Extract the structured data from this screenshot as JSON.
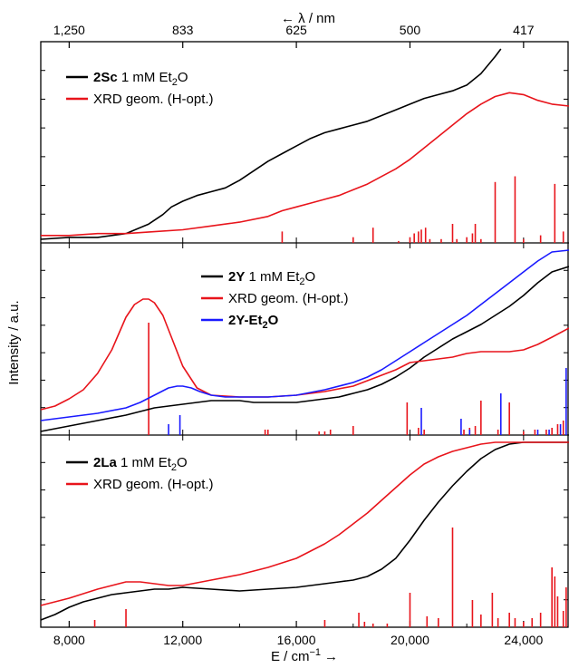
{
  "colors": {
    "sample": "#000000",
    "xrd": "#e8141b",
    "ether": "#1a1aff"
  },
  "axes": {
    "xlabel_main": "E / cm",
    "xlabel_exp": "−1",
    "xlabel_arrow": "→",
    "ylabel": "Intensity / a.u.",
    "top_label": "← λ / nm"
  },
  "chart_data": [
    {
      "type": "line",
      "panel": "top",
      "x_range": [
        7000,
        25600
      ],
      "x_ticks": [
        8000,
        12000,
        16000,
        20000,
        24000
      ],
      "x_tick_labels": [
        "8,000",
        "12,000",
        "16,000",
        "20,000",
        "24,000"
      ],
      "top_axis": {
        "ticks_wavenumber": [
          8000,
          12000,
          16000,
          20000,
          24000
        ],
        "tick_labels": [
          "1,250",
          "833",
          "625",
          "500",
          "417"
        ]
      },
      "ylim": [
        0,
        1
      ],
      "legend": [
        {
          "name_bold": "2Sc",
          "name_rest": " 1 mM Et",
          "sub": "2",
          "name_tail": "O",
          "color": "sample"
        },
        {
          "name_bold": "",
          "name_rest": "XRD geom. (H-opt.)",
          "sub": "",
          "name_tail": "",
          "color": "xrd"
        }
      ],
      "series": [
        {
          "name": "2Sc 1 mM Et2O",
          "color": "sample",
          "x": [
            7000,
            8000,
            9000,
            10000,
            10800,
            11300,
            11600,
            12000,
            12500,
            13000,
            13500,
            14000,
            14500,
            15000,
            15500,
            16000,
            16500,
            17000,
            17500,
            18000,
            18500,
            19000,
            19500,
            20000,
            20500,
            21000,
            21500,
            22000,
            22500,
            23000,
            23200
          ],
          "y": [
            0.0,
            0.01,
            0.01,
            0.03,
            0.08,
            0.13,
            0.17,
            0.2,
            0.23,
            0.25,
            0.27,
            0.31,
            0.36,
            0.41,
            0.45,
            0.49,
            0.53,
            0.56,
            0.58,
            0.6,
            0.62,
            0.65,
            0.68,
            0.71,
            0.74,
            0.76,
            0.78,
            0.81,
            0.87,
            0.96,
            1.0
          ]
        },
        {
          "name": "XRD geom. (H-opt.)",
          "color": "xrd",
          "x": [
            7000,
            8000,
            9000,
            10000,
            11000,
            12000,
            13000,
            14000,
            15000,
            15500,
            16000,
            16500,
            17000,
            17500,
            18000,
            18500,
            19000,
            19500,
            20000,
            20500,
            21000,
            21500,
            22000,
            22500,
            23000,
            23500,
            24000,
            24500,
            25000,
            25600
          ],
          "y": [
            0.02,
            0.02,
            0.03,
            0.03,
            0.04,
            0.05,
            0.07,
            0.09,
            0.12,
            0.15,
            0.17,
            0.19,
            0.21,
            0.23,
            0.26,
            0.29,
            0.33,
            0.37,
            0.42,
            0.48,
            0.54,
            0.6,
            0.66,
            0.71,
            0.75,
            0.77,
            0.76,
            0.73,
            0.71,
            0.7
          ]
        }
      ],
      "sticks": {
        "color": "xrd",
        "x": [
          15500,
          18000,
          18700,
          19600,
          20000,
          20150,
          20300,
          20400,
          20550,
          20700,
          21100,
          21500,
          21650,
          22000,
          22200,
          22300,
          22500,
          23000,
          23700,
          24000,
          24600,
          25100,
          25400
        ],
        "h": [
          0.06,
          0.03,
          0.08,
          0.01,
          0.03,
          0.05,
          0.06,
          0.07,
          0.08,
          0.02,
          0.02,
          0.1,
          0.02,
          0.03,
          0.05,
          0.1,
          0.02,
          0.32,
          0.35,
          0.02,
          0.04,
          0.31,
          0.06
        ]
      }
    },
    {
      "type": "line",
      "panel": "middle",
      "x_range": [
        7000,
        25600
      ],
      "ylim": [
        0,
        1
      ],
      "legend": [
        {
          "name_bold": "2Y",
          "name_rest": " 1 mM Et",
          "sub": "2",
          "name_tail": "O",
          "color": "sample"
        },
        {
          "name_bold": "",
          "name_rest": "XRD geom. (H-opt.)",
          "sub": "",
          "name_tail": "",
          "color": "xrd"
        },
        {
          "name_bold": "2Y-Et",
          "name_rest": "",
          "sub": "2",
          "name_tail": "O",
          "tail_bold": true,
          "color": "ether"
        }
      ],
      "series": [
        {
          "name": "2Y 1 mM Et2O",
          "color": "sample",
          "x": [
            7000,
            8000,
            9000,
            10000,
            11000,
            12000,
            12500,
            13000,
            13500,
            14000,
            14500,
            15000,
            15500,
            16000,
            16500,
            17000,
            17500,
            18000,
            18500,
            19000,
            19500,
            20000,
            20500,
            21000,
            21500,
            22000,
            22500,
            23000,
            23500,
            24000,
            24500,
            25000,
            25600
          ],
          "y": [
            0.0,
            0.03,
            0.06,
            0.09,
            0.13,
            0.15,
            0.16,
            0.17,
            0.17,
            0.17,
            0.16,
            0.16,
            0.16,
            0.16,
            0.17,
            0.18,
            0.19,
            0.21,
            0.23,
            0.26,
            0.3,
            0.35,
            0.41,
            0.46,
            0.51,
            0.55,
            0.59,
            0.64,
            0.69,
            0.75,
            0.82,
            0.88,
            0.91
          ]
        },
        {
          "name": "XRD geom. (H-opt.)",
          "color": "xrd",
          "x": [
            7000,
            7500,
            8000,
            8500,
            9000,
            9500,
            10000,
            10300,
            10600,
            10800,
            11000,
            11300,
            11600,
            12000,
            12500,
            13000,
            14000,
            15000,
            16000,
            17000,
            18000,
            18500,
            19000,
            19500,
            20000,
            20500,
            21000,
            21500,
            22000,
            22500,
            23000,
            23500,
            24000,
            24500,
            25000,
            25600
          ],
          "y": [
            0.12,
            0.14,
            0.18,
            0.23,
            0.32,
            0.45,
            0.63,
            0.7,
            0.73,
            0.73,
            0.71,
            0.64,
            0.52,
            0.36,
            0.24,
            0.2,
            0.19,
            0.19,
            0.2,
            0.22,
            0.25,
            0.28,
            0.31,
            0.34,
            0.38,
            0.39,
            0.4,
            0.41,
            0.43,
            0.44,
            0.44,
            0.44,
            0.45,
            0.48,
            0.52,
            0.57
          ]
        },
        {
          "name": "2Y-Et2O",
          "color": "ether",
          "x": [
            7000,
            8000,
            9000,
            10000,
            10500,
            11000,
            11500,
            11800,
            12000,
            12300,
            12600,
            13000,
            13500,
            14000,
            15000,
            16000,
            17000,
            18000,
            18500,
            19000,
            19500,
            20000,
            20500,
            21000,
            21500,
            22000,
            22500,
            23000,
            23500,
            24000,
            24500,
            25000,
            25600
          ],
          "y": [
            0.06,
            0.08,
            0.1,
            0.13,
            0.16,
            0.2,
            0.24,
            0.25,
            0.25,
            0.24,
            0.22,
            0.2,
            0.19,
            0.19,
            0.19,
            0.2,
            0.23,
            0.27,
            0.3,
            0.34,
            0.39,
            0.44,
            0.49,
            0.54,
            0.59,
            0.64,
            0.7,
            0.76,
            0.82,
            0.88,
            0.94,
            0.99,
            1.0
          ]
        }
      ],
      "sticks": [
        {
          "color": "xrd",
          "x": [
            10800,
            14900,
            15000,
            16800,
            17000,
            17200,
            18000,
            19900,
            20300,
            20500,
            21900,
            22100,
            22300,
            22500,
            23100,
            23500,
            24000,
            24400,
            24800,
            25000,
            25200,
            25400
          ],
          "h": [
            0.62,
            0.03,
            0.03,
            0.02,
            0.02,
            0.03,
            0.05,
            0.18,
            0.04,
            0.03,
            0.03,
            0.04,
            0.05,
            0.19,
            0.03,
            0.18,
            0.02,
            0.03,
            0.03,
            0.04,
            0.06,
            0.08
          ]
        },
        {
          "color": "ether",
          "x": [
            11500,
            11900,
            20400,
            21800,
            22100,
            23200,
            24500,
            24900,
            25300,
            25500
          ],
          "h": [
            0.06,
            0.11,
            0.15,
            0.09,
            0.03,
            0.23,
            0.03,
            0.03,
            0.06,
            0.37
          ]
        }
      ]
    },
    {
      "type": "line",
      "panel": "bottom",
      "x_range": [
        7000,
        25600
      ],
      "ylim": [
        0,
        1
      ],
      "legend": [
        {
          "name_bold": "2La",
          "name_rest": " 1 mM Et",
          "sub": "2",
          "name_tail": "O",
          "color": "sample"
        },
        {
          "name_bold": "",
          "name_rest": "XRD geom. (H-opt.)",
          "sub": "",
          "name_tail": "",
          "color": "xrd"
        }
      ],
      "series": [
        {
          "name": "2La 1 mM Et2O",
          "color": "sample",
          "x": [
            7000,
            7500,
            8000,
            8500,
            9000,
            9500,
            10000,
            10500,
            11000,
            11500,
            12000,
            13000,
            14000,
            15000,
            16000,
            17000,
            17500,
            18000,
            18500,
            19000,
            19500,
            20000,
            20500,
            21000,
            21500,
            22000,
            22500,
            23000,
            23500,
            24000,
            24500,
            25000,
            25600
          ],
          "y": [
            0.02,
            0.05,
            0.09,
            0.12,
            0.14,
            0.16,
            0.17,
            0.18,
            0.19,
            0.19,
            0.2,
            0.19,
            0.18,
            0.19,
            0.2,
            0.22,
            0.23,
            0.24,
            0.26,
            0.3,
            0.36,
            0.46,
            0.57,
            0.67,
            0.76,
            0.84,
            0.91,
            0.96,
            0.99,
            1.0,
            1.0,
            1.0,
            1.0
          ]
        },
        {
          "name": "XRD geom. (H-opt.)",
          "color": "xrd",
          "x": [
            7000,
            8000,
            9000,
            10000,
            10500,
            11000,
            11500,
            12000,
            13000,
            14000,
            15000,
            16000,
            16500,
            17000,
            17500,
            18000,
            18500,
            19000,
            19500,
            20000,
            20500,
            21000,
            21500,
            22000,
            22500,
            23000,
            23500,
            24000,
            24500,
            25000,
            25600
          ],
          "y": [
            0.1,
            0.14,
            0.19,
            0.23,
            0.23,
            0.22,
            0.21,
            0.21,
            0.24,
            0.27,
            0.31,
            0.36,
            0.4,
            0.44,
            0.49,
            0.55,
            0.61,
            0.68,
            0.75,
            0.82,
            0.88,
            0.92,
            0.95,
            0.97,
            0.99,
            1.0,
            1.0,
            1.0,
            1.0,
            1.0,
            1.0
          ]
        }
      ],
      "sticks": {
        "color": "xrd",
        "x": [
          8900,
          10000,
          17000,
          18200,
          18400,
          18700,
          19200,
          20000,
          20600,
          21000,
          21500,
          22200,
          22500,
          22900,
          23100,
          23500,
          23700,
          24000,
          24300,
          24600,
          25000,
          25100,
          25200,
          25400,
          25500
        ],
        "h": [
          0.04,
          0.1,
          0.04,
          0.08,
          0.03,
          0.02,
          0.02,
          0.19,
          0.06,
          0.05,
          0.55,
          0.15,
          0.07,
          0.19,
          0.05,
          0.08,
          0.05,
          0.03,
          0.05,
          0.08,
          0.33,
          0.28,
          0.17,
          0.09,
          0.22
        ]
      }
    }
  ]
}
